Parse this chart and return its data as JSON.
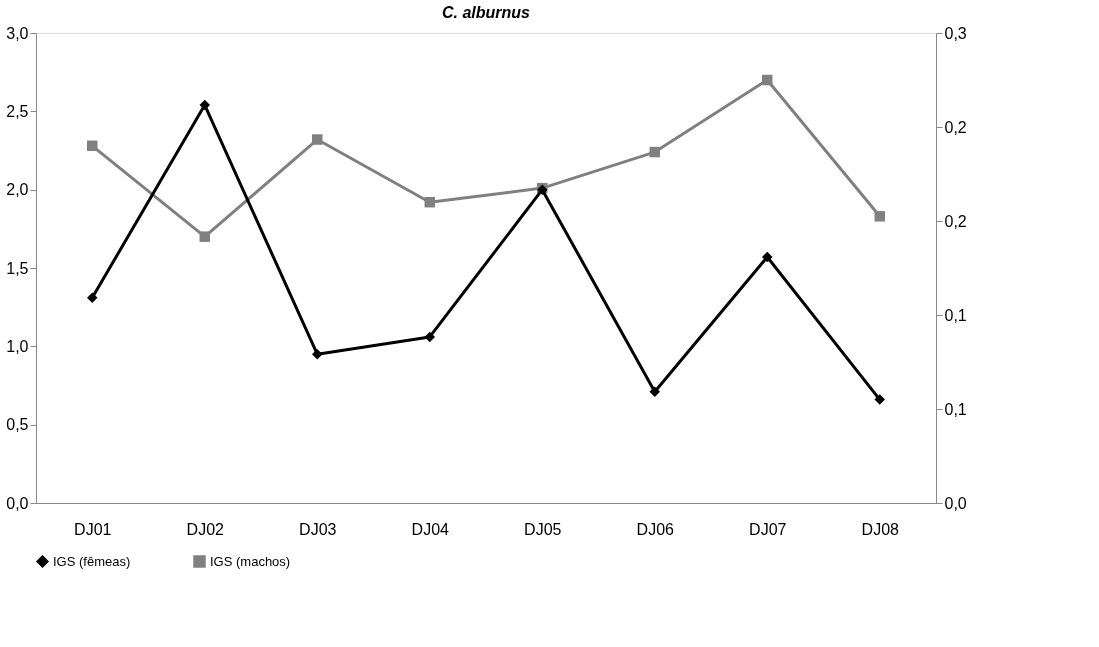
{
  "chart_data": {
    "type": "line",
    "title": "C. alburnus",
    "categories": [
      "DJ01",
      "DJ02",
      "DJ03",
      "DJ04",
      "DJ05",
      "DJ06",
      "DJ07",
      "DJ08"
    ],
    "series": [
      {
        "name": "IGS (fêmeas)",
        "color": "#000000",
        "marker": "diamond",
        "values": [
          1.31,
          2.54,
          0.95,
          1.06,
          2.0,
          0.71,
          1.57,
          0.66
        ]
      },
      {
        "name": "IGS (machos)",
        "color": "#808080",
        "marker": "square",
        "axis": "y2",
        "values": [
          0.228,
          0.17,
          0.232,
          0.192,
          0.201,
          0.224,
          0.27,
          0.183
        ]
      }
    ],
    "ylim": [
      0,
      3
    ],
    "yticks": [
      {
        "value": 0,
        "label": "0,0"
      },
      {
        "value": 0.5,
        "label": "0,5"
      },
      {
        "value": 1,
        "label": "1,0"
      },
      {
        "value": 1.5,
        "label": "1,5"
      },
      {
        "value": 2,
        "label": "2,0"
      },
      {
        "value": 2.5,
        "label": "2,5"
      },
      {
        "value": 3,
        "label": "3,0"
      }
    ],
    "y2lim": [
      0,
      0.3
    ],
    "y2ticks": [
      {
        "value": 0,
        "label": "0,0"
      },
      {
        "value": 0.06,
        "label": "0,1"
      },
      {
        "value": 0.12,
        "label": "0,1"
      },
      {
        "value": 0.18,
        "label": "0,2"
      },
      {
        "value": 0.24,
        "label": "0,2"
      },
      {
        "value": 0.3,
        "label": "0,3"
      }
    ],
    "grid": false,
    "legend": "bottom",
    "line_style": "solid"
  }
}
